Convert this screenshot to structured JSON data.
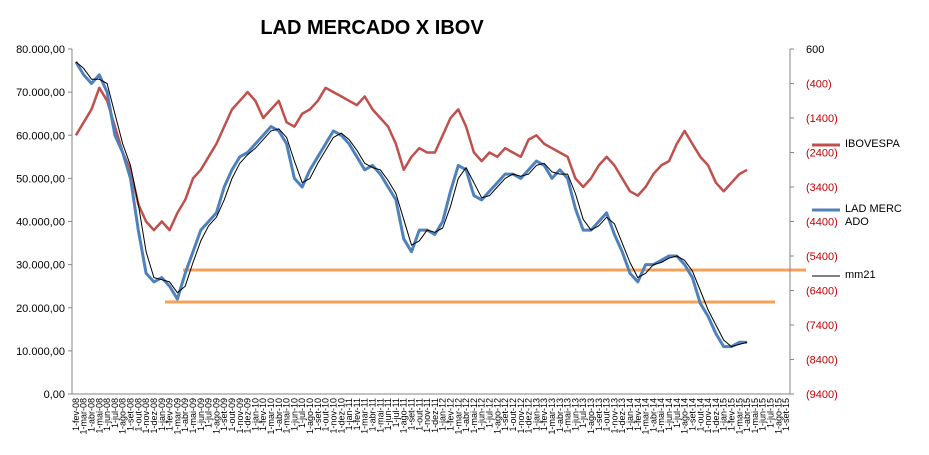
{
  "chart_data": {
    "type": "line",
    "title": "LAD MERCADO X IBOV",
    "categories": [
      "1-fev-08",
      "1-mar-08",
      "1-abr-08",
      "1-mai-08",
      "1-jun-08",
      "1-jul-08",
      "1-ago-08",
      "1-set-08",
      "1-out-08",
      "1-nov-08",
      "1-dez-08",
      "1-jan-09",
      "1-fev-09",
      "1-mar-09",
      "1-abr-09",
      "1-mai-09",
      "1-jun-09",
      "1-jul-09",
      "1-ago-09",
      "1-set-09",
      "1-out-09",
      "1-nov-09",
      "1-dez-09",
      "1-jan-10",
      "1-fev-10",
      "1-mar-10",
      "1-abr-10",
      "1-mai-10",
      "1-jun-10",
      "1-jul-10",
      "1-ago-10",
      "1-set-10",
      "1-out-10",
      "1-nov-10",
      "1-dez-10",
      "1-jan-11",
      "1-fev-11",
      "1-mar-11",
      "1-abr-11",
      "1-mai-11",
      "1-jun-11",
      "1-jul-11",
      "1-ago-11",
      "1-set-11",
      "1-out-11",
      "1-nov-11",
      "1-dez-11",
      "1-jan-12",
      "1-fev-12",
      "1-mar-12",
      "1-abr-12",
      "1-mai-12",
      "1-jun-12",
      "1-jul-12",
      "1-ago-12",
      "1-set-12",
      "1-out-12",
      "1-nov-12",
      "1-dez-12",
      "1-jan-13",
      "1-fev-13",
      "1-mar-13",
      "1-abr-13",
      "1-mai-13",
      "1-jun-13",
      "1-jul-13",
      "1-ago-13",
      "1-set-13",
      "1-out-13",
      "1-nov-13",
      "1-dez-13",
      "1-jan-14",
      "1-fev-14",
      "1-mar-14",
      "1-abr-14",
      "1-mai-14",
      "1-jun-14",
      "1-jul-14",
      "1-ago-14",
      "1-set-14",
      "1-out-14",
      "1-nov-14",
      "1-dez-14",
      "1-jan-15",
      "1-fev-15",
      "1-mar-15",
      "1-abr-15",
      "1-mai-15",
      "1-jun-15",
      "1-jul-15",
      "1-ago-15",
      "1-set-15"
    ],
    "series": [
      {
        "name": "IBOVESPA",
        "color": "#c0504d",
        "axis": "y2",
        "values": [
          -1900,
          -1525,
          -1150,
          -525,
          -900,
          -1650,
          -2400,
          -2900,
          -3900,
          -4400,
          -4650,
          -4400,
          -4650,
          -4150,
          -3775,
          -3150,
          -2900,
          -2525,
          -2150,
          -1650,
          -1150,
          -900,
          -650,
          -900,
          -1400,
          -1150,
          -900,
          -1525,
          -1650,
          -1275,
          -1150,
          -900,
          -525,
          -650,
          -775,
          -900,
          -1025,
          -775,
          -1150,
          -1400,
          -1650,
          -2150,
          -2900,
          -2525,
          -2275,
          -2400,
          -2400,
          -1900,
          -1400,
          -1150,
          -1650,
          -2400,
          -2650,
          -2400,
          -2525,
          -2275,
          -2400,
          -2525,
          -2025,
          -1900,
          -2150,
          -2275,
          -2400,
          -2525,
          -3150,
          -3400,
          -3150,
          -2775,
          -2525,
          -2775,
          -3150,
          -3525,
          -3650,
          -3400,
          -3025,
          -2775,
          -2650,
          -2150,
          -1775,
          -2150,
          -2525,
          -2775,
          -3275,
          -3525,
          -3275,
          -3025,
          -2900,
          null,
          null,
          null,
          null,
          null
        ]
      },
      {
        "name": "LAD MERCADO",
        "color": "#4f81bd",
        "values": [
          77000,
          74000,
          72000,
          74000,
          70000,
          60000,
          56000,
          50000,
          38000,
          28000,
          26000,
          27000,
          25000,
          22000,
          28000,
          33000,
          38000,
          40000,
          42000,
          48000,
          52000,
          55000,
          56000,
          58000,
          60000,
          62000,
          61000,
          58000,
          50000,
          48000,
          52000,
          55000,
          58000,
          61000,
          60000,
          58000,
          55000,
          52000,
          53000,
          51000,
          48000,
          45000,
          36000,
          33000,
          38000,
          38000,
          37000,
          40000,
          47000,
          53000,
          52000,
          46000,
          45000,
          47000,
          49000,
          51000,
          51000,
          50000,
          52000,
          54000,
          53000,
          50000,
          52000,
          50000,
          43000,
          38000,
          38000,
          40000,
          42000,
          37000,
          33000,
          28000,
          26000,
          30000,
          30000,
          31000,
          32000,
          32000,
          30000,
          27000,
          21000,
          18000,
          14000,
          11000,
          11000,
          12000,
          12000,
          null,
          null,
          null,
          null,
          null
        ]
      },
      {
        "name": "mm21",
        "color": "#000000",
        "values": [
          77000,
          75500,
          73000,
          73000,
          72000,
          65000,
          58000,
          53000,
          44000,
          33000,
          27000,
          26500,
          26000,
          23500,
          25000,
          30500,
          35500,
          39000,
          41000,
          45000,
          50000,
          53500,
          55500,
          57000,
          59000,
          61000,
          61500,
          59500,
          54000,
          49000,
          50000,
          53500,
          56500,
          59500,
          60500,
          59000,
          56500,
          53500,
          52500,
          52000,
          49500,
          46500,
          40500,
          34500,
          35500,
          38000,
          37500,
          38500,
          43500,
          50000,
          52500,
          49000,
          45500,
          46000,
          48000,
          50000,
          51000,
          50500,
          51000,
          53000,
          53500,
          51500,
          51000,
          51000,
          46500,
          40500,
          38000,
          39000,
          41000,
          39500,
          35000,
          30500,
          27000,
          28000,
          30000,
          30500,
          31500,
          32000,
          31000,
          28500,
          24000,
          19500,
          16000,
          12500,
          11000,
          11500,
          12000,
          null,
          null,
          null,
          null,
          null
        ]
      }
    ],
    "ylim": [
      0,
      80000
    ],
    "yticks": [
      {
        "value": 0,
        "label": "0,00"
      },
      {
        "value": 10000,
        "label": "10.000,00"
      },
      {
        "value": 20000,
        "label": "20.000,00"
      },
      {
        "value": 30000,
        "label": "30.000,00"
      },
      {
        "value": 40000,
        "label": "40.000,00"
      },
      {
        "value": 50000,
        "label": "50.000,00"
      },
      {
        "value": 60000,
        "label": "60.000,00"
      },
      {
        "value": 70000,
        "label": "70.000,00"
      },
      {
        "value": 80000,
        "label": "80.000,00"
      }
    ],
    "y2lim": [
      -9400,
      600
    ],
    "y2ticks": [
      {
        "value": -9400,
        "label": "(9400)"
      },
      {
        "value": -8400,
        "label": "(8400)"
      },
      {
        "value": -7400,
        "label": "(7400)"
      },
      {
        "value": -6400,
        "label": "(6400)"
      },
      {
        "value": -5400,
        "label": "(5400)"
      },
      {
        "value": -4400,
        "label": "(4400)"
      },
      {
        "value": -3400,
        "label": "(3400)"
      },
      {
        "value": -2400,
        "label": "(2400)"
      },
      {
        "value": -1400,
        "label": "(1400)"
      },
      {
        "value": -400,
        "label": "(400)"
      },
      600
    ],
    "legend": "right"
  }
}
